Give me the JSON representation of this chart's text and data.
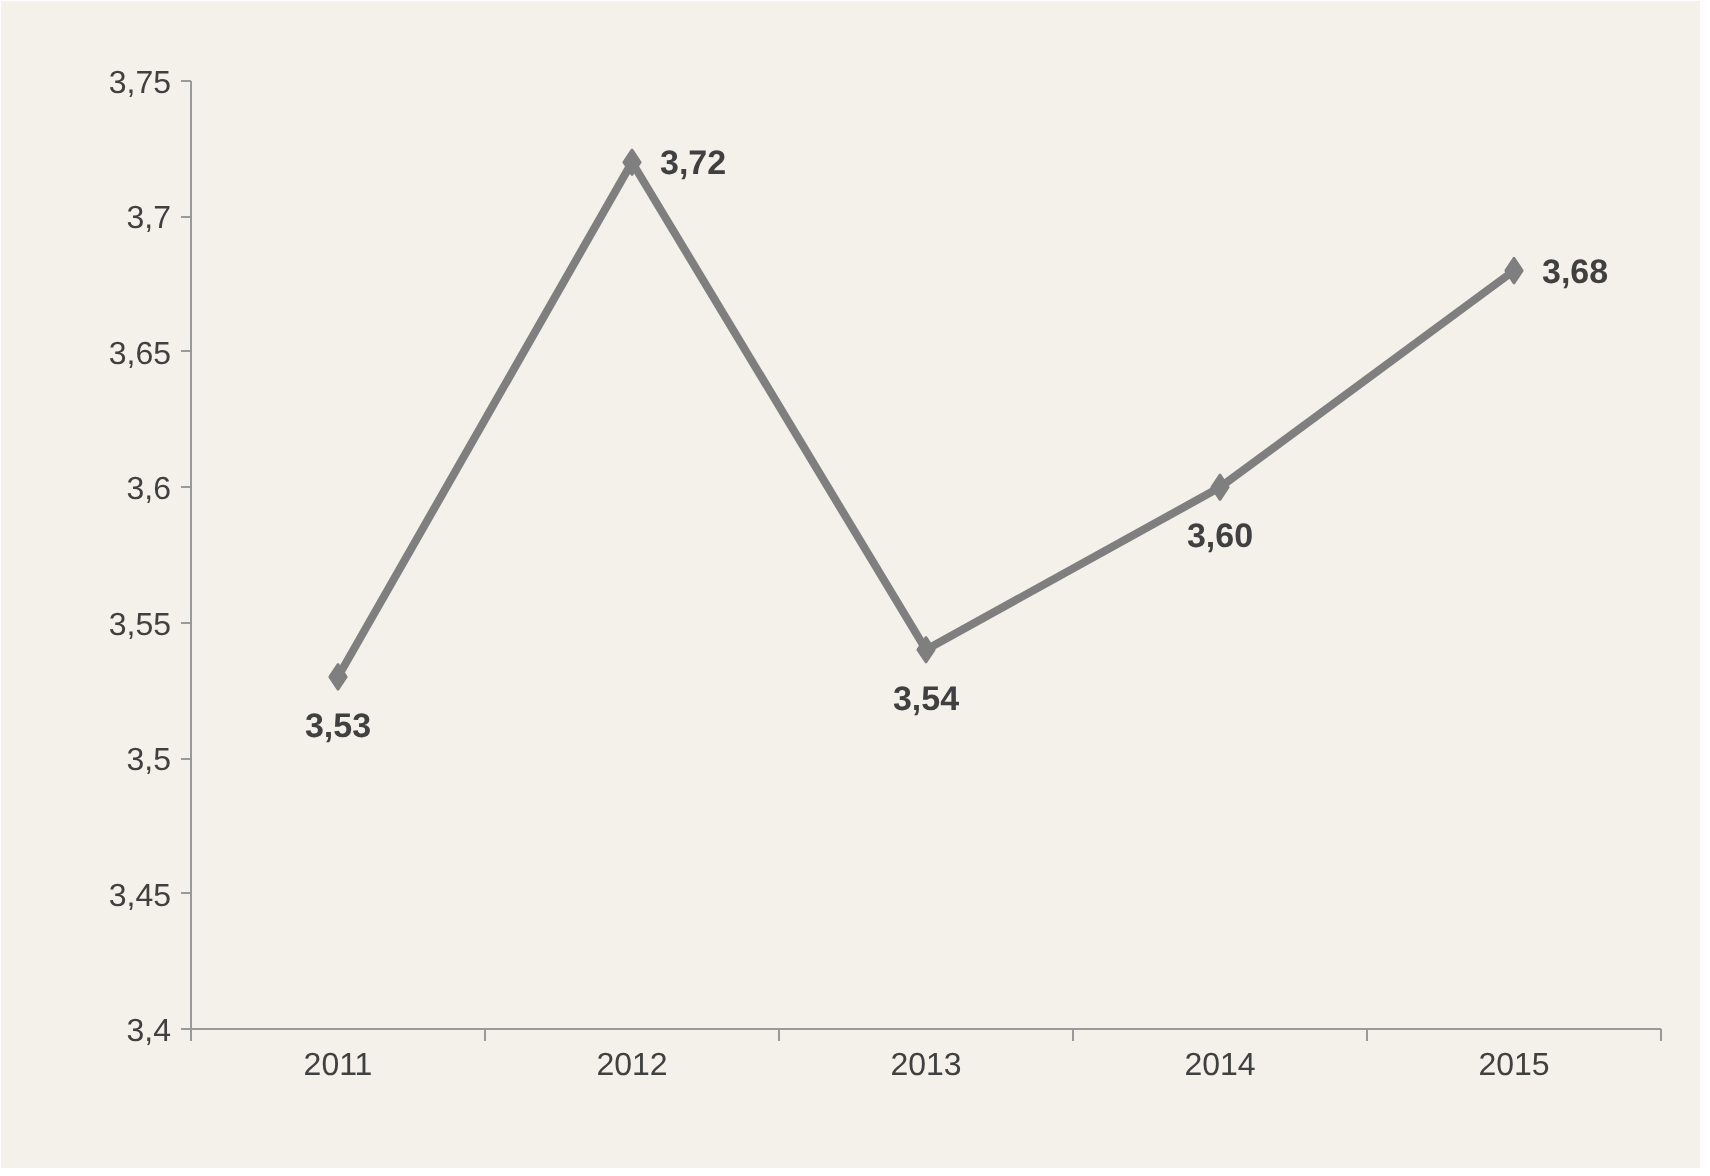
{
  "chart_data": {
    "type": "line",
    "categories": [
      "2011",
      "2012",
      "2013",
      "2014",
      "2015"
    ],
    "series": [
      {
        "color": "#7f7f7f",
        "values": [
          3.53,
          3.72,
          3.54,
          3.6,
          3.68
        ],
        "value_labels": [
          "3,53",
          "3,72",
          "3,54",
          "3,60",
          "3,68"
        ]
      }
    ],
    "ylim": [
      3.4,
      3.75
    ],
    "yticks": [
      {
        "value": 3.4,
        "label": "3,4"
      },
      {
        "value": 3.45,
        "label": "3,45"
      },
      {
        "value": 3.5,
        "label": "3,5"
      },
      {
        "value": 3.55,
        "label": "3,55"
      },
      {
        "value": 3.6,
        "label": "3,6"
      },
      {
        "value": 3.65,
        "label": "3,65"
      },
      {
        "value": 3.7,
        "label": "3,7"
      },
      {
        "value": 3.75,
        "label": "3,75"
      }
    ],
    "grid": false,
    "marker": "diamond",
    "line_style": "solid"
  }
}
